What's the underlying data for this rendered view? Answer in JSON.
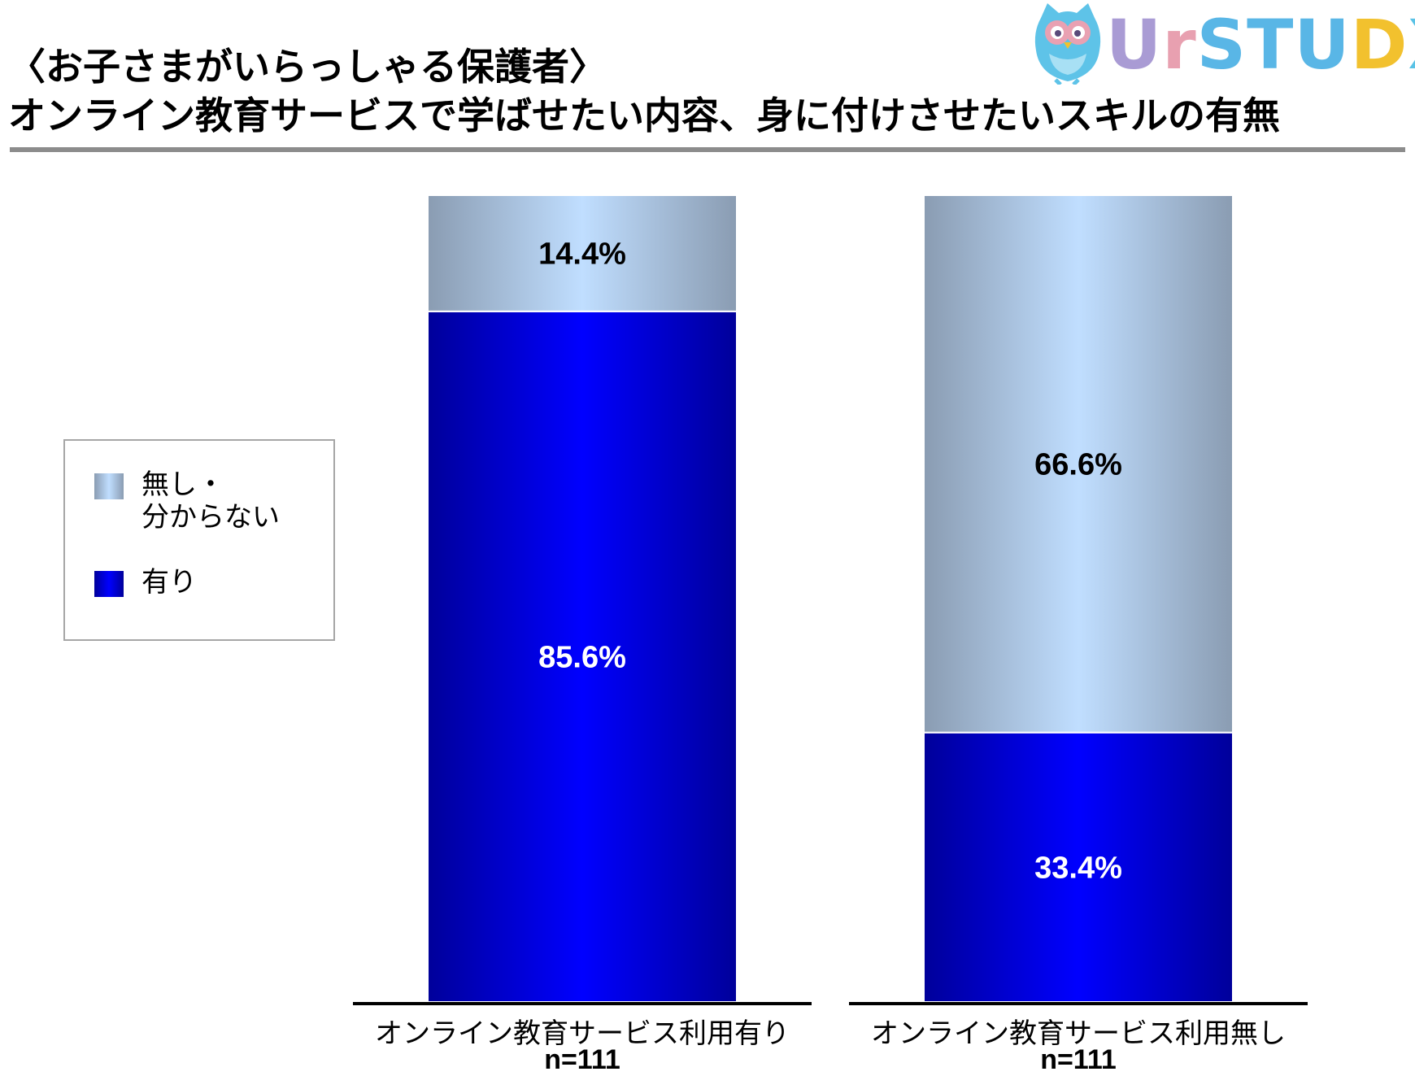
{
  "title": {
    "line1": "〈お子さまがいらっしゃる保護者〉",
    "line2": "オンライン教育サービスで学ばせたい内容、身に付けさせたいスキルの有無"
  },
  "logo": {
    "text": "UrSTUDX",
    "owl_icon": "owl-mascot-icon",
    "letter_colors": [
      "#a99bd4",
      "#e8a0b0",
      "#59b6e6",
      "#59b6e6",
      "#59b6e6",
      "#f2c12e",
      "#59c2e6"
    ],
    "dot_color": "#f07c8c"
  },
  "colors": {
    "yes": "#0000ff",
    "yes_edge": "#00009a",
    "no": "#c0deff",
    "no_edge": "#8a9cb2"
  },
  "chart_data": {
    "type": "bar",
    "stacked": true,
    "categories": [
      "オンライン教育サービス利用有り",
      "オンライン教育サービス利用無し"
    ],
    "sample_sizes": [
      "n=111",
      "n=111"
    ],
    "series": [
      {
        "name": "有り",
        "values": [
          85.6,
          33.4
        ],
        "labels": [
          "85.6%",
          "33.4%"
        ]
      },
      {
        "name": "無し・\n分からない",
        "values": [
          14.4,
          66.6
        ],
        "labels": [
          "14.4%",
          "66.6%"
        ]
      }
    ],
    "ylim": [
      0,
      100
    ],
    "grid": false,
    "legend_position": "left"
  },
  "legend": {
    "items": [
      {
        "label": "無し・\n分からない",
        "swatch": "no"
      },
      {
        "label": "有り",
        "swatch": "yes"
      }
    ]
  }
}
